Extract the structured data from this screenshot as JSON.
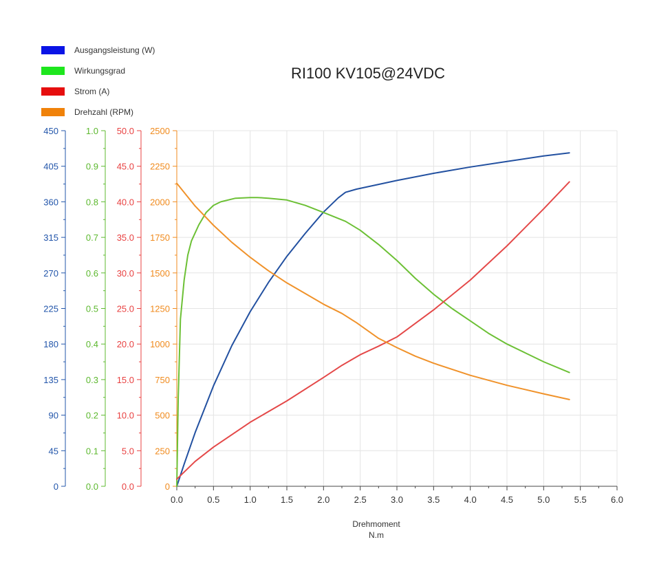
{
  "title": "RI100 KV105@24VDC",
  "xlabel": "Drehmoment",
  "xunit": "N.m",
  "chart_data": {
    "type": "line",
    "title": "RI100 KV105@24VDC",
    "xlabel": "Drehmoment N.m",
    "xlim": [
      0,
      6.0
    ],
    "xticks": [
      "0.0",
      "0.5",
      "1.0",
      "1.5",
      "2.0",
      "2.5",
      "3.0",
      "3.5",
      "4.0",
      "4.5",
      "5.0",
      "5.5",
      "6.0"
    ],
    "grid": true,
    "legend_position": "top-left",
    "axes": [
      {
        "id": "power",
        "color": "#2255aa",
        "ylim": [
          0,
          450
        ],
        "ticks": [
          "0",
          "45",
          "90",
          "135",
          "180",
          "225",
          "270",
          "315",
          "360",
          "405",
          "450"
        ]
      },
      {
        "id": "eff",
        "color": "#5cb82e",
        "ylim": [
          0,
          1.0
        ],
        "ticks": [
          "0.0",
          "0.1",
          "0.2",
          "0.3",
          "0.4",
          "0.5",
          "0.6",
          "0.7",
          "0.8",
          "0.9",
          "1.0"
        ]
      },
      {
        "id": "current",
        "color": "#e84040",
        "ylim": [
          0,
          50
        ],
        "ticks": [
          "0.0",
          "5.0",
          "10.0",
          "15.0",
          "20.0",
          "25.0",
          "30.0",
          "35.0",
          "40.0",
          "45.0",
          "50.0"
        ]
      },
      {
        "id": "speed",
        "color": "#f08a1c",
        "ylim": [
          0,
          2500
        ],
        "ticks": [
          "0",
          "250",
          "500",
          "750",
          "1000",
          "1250",
          "1500",
          "1750",
          "2000",
          "2250",
          "2500"
        ]
      }
    ],
    "series": [
      {
        "name": "Ausgangsleistung (W)",
        "legend_color": "#0a14e6",
        "color": "#2250a0",
        "axis": "power",
        "x": [
          0.0,
          0.1,
          0.25,
          0.5,
          0.75,
          1.0,
          1.25,
          1.5,
          1.75,
          2.0,
          2.2,
          2.3,
          2.45,
          2.75,
          3.0,
          3.5,
          4.0,
          4.5,
          5.0,
          5.35
        ],
        "y": [
          0,
          28,
          68,
          127,
          178,
          221,
          258,
          291,
          320,
          347,
          365,
          372,
          376,
          382,
          387,
          396,
          404,
          411,
          418,
          422
        ]
      },
      {
        "name": "Wirkungsgrad",
        "legend_color": "#1ee61e",
        "color": "#6cc035",
        "axis": "eff",
        "x": [
          0.0,
          0.02,
          0.05,
          0.1,
          0.15,
          0.2,
          0.3,
          0.4,
          0.5,
          0.6,
          0.8,
          1.0,
          1.1,
          1.25,
          1.5,
          1.75,
          2.0,
          2.3,
          2.5,
          2.75,
          3.0,
          3.25,
          3.5,
          3.75,
          4.0,
          4.25,
          4.5,
          4.75,
          5.0,
          5.35
        ],
        "y": [
          0.0,
          0.25,
          0.47,
          0.58,
          0.65,
          0.69,
          0.735,
          0.77,
          0.79,
          0.8,
          0.81,
          0.812,
          0.812,
          0.81,
          0.805,
          0.79,
          0.77,
          0.745,
          0.72,
          0.68,
          0.635,
          0.585,
          0.54,
          0.5,
          0.465,
          0.43,
          0.4,
          0.375,
          0.35,
          0.32
        ]
      },
      {
        "name": "Strom (A)",
        "legend_color": "#e60e0e",
        "color": "#e44848",
        "axis": "current",
        "x": [
          0.0,
          0.25,
          0.5,
          1.0,
          1.5,
          2.0,
          2.25,
          2.5,
          2.75,
          3.0,
          3.5,
          4.0,
          4.5,
          5.0,
          5.35
        ],
        "y": [
          1.0,
          3.5,
          5.5,
          9.0,
          12.0,
          15.3,
          17.0,
          18.5,
          19.7,
          21.0,
          24.8,
          29.0,
          33.8,
          39.0,
          42.8
        ]
      },
      {
        "name": "Drehzahl (RPM)",
        "legend_color": "#f0820a",
        "color": "#f0922a",
        "axis": "speed",
        "x": [
          0.0,
          0.25,
          0.5,
          0.75,
          1.0,
          1.25,
          1.5,
          1.75,
          2.0,
          2.25,
          2.45,
          2.75,
          3.0,
          3.25,
          3.5,
          4.0,
          4.5,
          5.0,
          5.35
        ],
        "y": [
          2130,
          1970,
          1835,
          1715,
          1610,
          1515,
          1430,
          1355,
          1280,
          1215,
          1150,
          1040,
          975,
          915,
          865,
          780,
          710,
          650,
          610
        ]
      }
    ]
  }
}
